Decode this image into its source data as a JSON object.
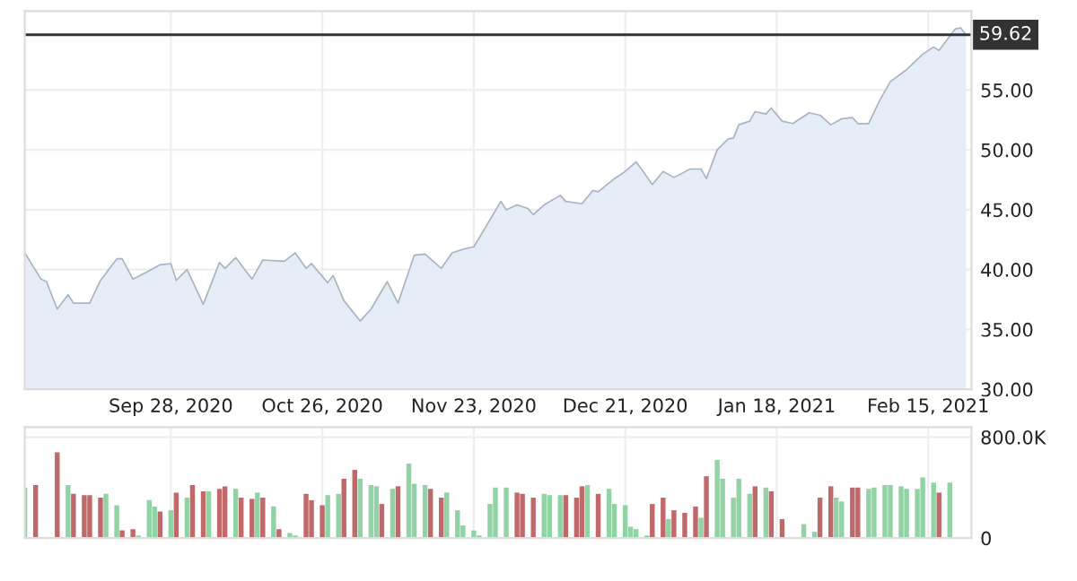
{
  "chart_data": [
    {
      "type": "area",
      "xlim": [
        "2020-09-01",
        "2021-02-23"
      ],
      "ylim": [
        30,
        61.6
      ],
      "yticks": [
        {
          "value": 30,
          "label": "30.00"
        },
        {
          "value": 35,
          "label": "35.00"
        },
        {
          "value": 40,
          "label": "40.00"
        },
        {
          "value": 45,
          "label": "45.00"
        },
        {
          "value": 50,
          "label": "50.00"
        },
        {
          "value": 55,
          "label": "55.00"
        }
      ],
      "xticks": [
        {
          "value": "2020-09-28",
          "label": "Sep 28, 2020"
        },
        {
          "value": "2020-10-26",
          "label": "Oct 26, 2020"
        },
        {
          "value": "2020-11-23",
          "label": "Nov 23, 2020"
        },
        {
          "value": "2020-12-21",
          "label": "Dec 21, 2020"
        },
        {
          "value": "2021-01-18",
          "label": "Jan 18, 2021"
        },
        {
          "value": "2021-02-15",
          "label": "Feb 15, 2021"
        }
      ],
      "grid": true,
      "ref_lines": [
        {
          "axis": "y",
          "value": 59.62,
          "label": "59.62",
          "color": "#333333"
        }
      ],
      "series": [
        {
          "color": "#a9b4c2",
          "x": [
            "2020-09-01",
            "2020-09-04",
            "2020-09-05",
            "2020-09-07",
            "2020-09-09",
            "2020-09-10",
            "2020-09-13",
            "2020-09-15",
            "2020-09-18",
            "2020-09-19",
            "2020-09-21",
            "2020-09-24",
            "2020-09-26",
            "2020-09-28",
            "2020-09-29",
            "2020-10-01",
            "2020-10-04",
            "2020-10-07",
            "2020-10-08",
            "2020-10-10",
            "2020-10-13",
            "2020-10-15",
            "2020-10-19",
            "2020-10-21",
            "2020-10-23",
            "2020-10-24",
            "2020-10-27",
            "2020-10-28",
            "2020-10-30",
            "2020-11-02",
            "2020-11-04",
            "2020-11-07",
            "2020-11-09",
            "2020-11-12",
            "2020-11-14",
            "2020-11-17",
            "2020-11-19",
            "2020-11-21",
            "2020-11-23",
            "2020-11-25",
            "2020-11-28",
            "2020-11-29",
            "2020-12-01",
            "2020-12-03",
            "2020-12-04",
            "2020-12-06",
            "2020-12-09",
            "2020-12-10",
            "2020-12-13",
            "2020-12-15",
            "2020-12-16",
            "2020-12-19",
            "2020-12-21",
            "2020-12-23",
            "2020-12-24",
            "2020-12-26",
            "2020-12-28",
            "2020-12-30",
            "2021-01-02",
            "2021-01-04",
            "2021-01-05",
            "2021-01-07",
            "2021-01-09",
            "2021-01-10",
            "2021-01-11",
            "2021-01-13",
            "2021-01-14",
            "2021-01-16",
            "2021-01-17",
            "2021-01-19",
            "2021-01-21",
            "2021-01-24",
            "2021-01-26",
            "2021-01-28",
            "2021-01-30",
            "2021-02-01",
            "2021-02-02",
            "2021-02-04",
            "2021-02-06",
            "2021-02-08",
            "2021-02-11",
            "2021-02-14",
            "2021-02-16",
            "2021-02-17",
            "2021-02-20",
            "2021-02-21",
            "2021-02-22"
          ],
          "values": [
            41.4,
            39.2,
            39.0,
            36.7,
            37.9,
            37.2,
            37.2,
            39.1,
            40.9,
            40.9,
            39.2,
            39.9,
            40.4,
            40.5,
            39.1,
            40.0,
            37.1,
            40.6,
            40.1,
            41.0,
            39.2,
            40.8,
            40.7,
            41.4,
            40.1,
            40.5,
            38.9,
            39.5,
            37.4,
            35.7,
            36.7,
            39.0,
            37.2,
            41.2,
            41.3,
            40.1,
            41.4,
            41.7,
            41.9,
            43.4,
            45.7,
            45.0,
            45.4,
            45.1,
            44.6,
            45.4,
            46.2,
            45.7,
            45.5,
            46.6,
            46.5,
            47.6,
            48.2,
            49.0,
            48.4,
            47.1,
            48.2,
            47.7,
            48.4,
            48.4,
            47.6,
            50.0,
            50.9,
            51.0,
            52.1,
            52.4,
            53.2,
            53.0,
            53.5,
            52.4,
            52.2,
            53.1,
            52.9,
            52.1,
            52.6,
            52.7,
            52.2,
            52.2,
            54.1,
            55.7,
            56.7,
            58.0,
            58.6,
            58.3,
            60.1,
            60.2,
            59.62
          ]
        }
      ]
    },
    {
      "type": "bar",
      "xlim": [
        "2020-09-01",
        "2021-02-23"
      ],
      "ylim": [
        0,
        880000
      ],
      "yticks": [
        0,
        {
          "value": 800000,
          "label": "800.0K"
        }
      ],
      "grid": true,
      "tick_labels": "y",
      "x": [
        "2020-09-01",
        "2020-09-03",
        "2020-09-07",
        "2020-09-09",
        "2020-09-10",
        "2020-09-12",
        "2020-09-13",
        "2020-09-15",
        "2020-09-16",
        "2020-09-18",
        "2020-09-19",
        "2020-09-21",
        "2020-09-22",
        "2020-09-24",
        "2020-09-25",
        "2020-09-26",
        "2020-09-28",
        "2020-09-29",
        "2020-10-01",
        "2020-10-02",
        "2020-10-04",
        "2020-10-05",
        "2020-10-07",
        "2020-10-08",
        "2020-10-10",
        "2020-10-11",
        "2020-10-13",
        "2020-10-14",
        "2020-10-15",
        "2020-10-17",
        "2020-10-18",
        "2020-10-20",
        "2020-10-21",
        "2020-10-23",
        "2020-10-24",
        "2020-10-26",
        "2020-10-27",
        "2020-10-29",
        "2020-10-30",
        "2020-11-01",
        "2020-11-02",
        "2020-11-04",
        "2020-11-05",
        "2020-11-06",
        "2020-11-08",
        "2020-11-09",
        "2020-11-11",
        "2020-11-12",
        "2020-11-14",
        "2020-11-15",
        "2020-11-17",
        "2020-11-18",
        "2020-11-20",
        "2020-11-21",
        "2020-11-23",
        "2020-11-24",
        "2020-11-26",
        "2020-11-27",
        "2020-11-29",
        "2020-12-01",
        "2020-12-02",
        "2020-12-04",
        "2020-12-06",
        "2020-12-07",
        "2020-12-09",
        "2020-12-10",
        "2020-12-12",
        "2020-12-13",
        "2020-12-14",
        "2020-12-16",
        "2020-12-18",
        "2020-12-19",
        "2020-12-21",
        "2020-12-22",
        "2020-12-23",
        "2020-12-25",
        "2020-12-26",
        "2020-12-28",
        "2020-12-29",
        "2020-12-30",
        "2021-01-01",
        "2021-01-03",
        "2021-01-04",
        "2021-01-05",
        "2021-01-07",
        "2021-01-08",
        "2021-01-10",
        "2021-01-11",
        "2021-01-13",
        "2021-01-14",
        "2021-01-16",
        "2021-01-17",
        "2021-01-19",
        "2021-01-23",
        "2021-01-25",
        "2021-01-26",
        "2021-01-28",
        "2021-01-29",
        "2021-01-30",
        "2021-02-01",
        "2021-02-02",
        "2021-02-04",
        "2021-02-05",
        "2021-02-07",
        "2021-02-08",
        "2021-02-10",
        "2021-02-11",
        "2021-02-13",
        "2021-02-14",
        "2021-02-16",
        "2021-02-17",
        "2021-02-19"
      ],
      "values": [
        400000,
        420000,
        680000,
        420000,
        350000,
        340000,
        340000,
        320000,
        350000,
        260000,
        60000,
        70000,
        20000,
        300000,
        250000,
        210000,
        220000,
        360000,
        320000,
        420000,
        370000,
        370000,
        390000,
        410000,
        390000,
        320000,
        310000,
        360000,
        320000,
        250000,
        70000,
        40000,
        20000,
        350000,
        300000,
        260000,
        340000,
        350000,
        470000,
        540000,
        470000,
        420000,
        410000,
        270000,
        390000,
        410000,
        590000,
        430000,
        420000,
        390000,
        320000,
        360000,
        220000,
        100000,
        60000,
        20000,
        270000,
        400000,
        400000,
        360000,
        350000,
        320000,
        350000,
        340000,
        340000,
        340000,
        320000,
        410000,
        420000,
        350000,
        390000,
        270000,
        260000,
        90000,
        70000,
        20000,
        270000,
        320000,
        150000,
        220000,
        200000,
        250000,
        160000,
        490000,
        620000,
        470000,
        320000,
        470000,
        350000,
        410000,
        400000,
        370000,
        150000,
        110000,
        50000,
        320000,
        410000,
        320000,
        290000,
        400000,
        400000,
        390000,
        400000,
        420000,
        420000,
        410000,
        390000,
        390000,
        480000,
        440000,
        360000,
        440000
      ],
      "colors": [
        "#92d3a6",
        "#c0696b",
        "#c0696b",
        "#92d3a6",
        "#c0696b",
        "#c0696b",
        "#c0696b",
        "#c0696b",
        "#92d3a6",
        "#92d3a6",
        "#c0696b",
        "#c0696b",
        "#92d3a6",
        "#92d3a6",
        "#92d3a6",
        "#c0696b",
        "#92d3a6",
        "#c0696b",
        "#92d3a6",
        "#c0696b",
        "#c0696b",
        "#92d3a6",
        "#c0696b",
        "#c0696b",
        "#92d3a6",
        "#c0696b",
        "#c0696b",
        "#92d3a6",
        "#c0696b",
        "#92d3a6",
        "#c0696b",
        "#92d3a6",
        "#92d3a6",
        "#c0696b",
        "#c0696b",
        "#c0696b",
        "#92d3a6",
        "#92d3a6",
        "#c0696b",
        "#c0696b",
        "#92d3a6",
        "#92d3a6",
        "#92d3a6",
        "#c0696b",
        "#92d3a6",
        "#c0696b",
        "#92d3a6",
        "#92d3a6",
        "#92d3a6",
        "#c0696b",
        "#c0696b",
        "#92d3a6",
        "#92d3a6",
        "#92d3a6",
        "#92d3a6",
        "#92d3a6",
        "#92d3a6",
        "#92d3a6",
        "#92d3a6",
        "#c0696b",
        "#c0696b",
        "#c0696b",
        "#92d3a6",
        "#92d3a6",
        "#92d3a6",
        "#c0696b",
        "#c0696b",
        "#c0696b",
        "#92d3a6",
        "#c0696b",
        "#92d3a6",
        "#92d3a6",
        "#92d3a6",
        "#92d3a6",
        "#92d3a6",
        "#92d3a6",
        "#c0696b",
        "#c0696b",
        "#92d3a6",
        "#c0696b",
        "#c0696b",
        "#c0696b",
        "#92d3a6",
        "#c0696b",
        "#92d3a6",
        "#92d3a6",
        "#92d3a6",
        "#92d3a6",
        "#92d3a6",
        "#c0696b",
        "#92d3a6",
        "#c0696b",
        "#c0696b",
        "#92d3a6",
        "#92d3a6",
        "#c0696b",
        "#c0696b",
        "#92d3a6",
        "#92d3a6",
        "#c0696b",
        "#c0696b",
        "#92d3a6",
        "#92d3a6",
        "#92d3a6",
        "#92d3a6",
        "#92d3a6",
        "#92d3a6",
        "#92d3a6",
        "#92d3a6",
        "#92d3a6",
        "#c0696b",
        "#92d3a6"
      ]
    }
  ]
}
